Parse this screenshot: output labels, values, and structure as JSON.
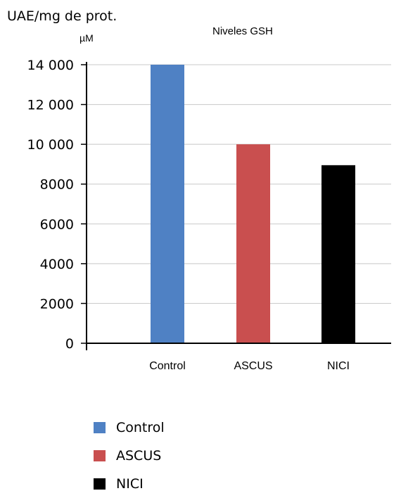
{
  "header": {
    "unit_label": "UAE/mg de prot."
  },
  "chart_data": {
    "type": "bar",
    "title": "Niveles GSH",
    "ylabel": "µM",
    "xlabel": "",
    "categories": [
      "Control",
      "ASCUS",
      "NICI"
    ],
    "values": [
      14000,
      10000,
      8950
    ],
    "colors": [
      "#4f81c4",
      "#c94f4f",
      "#000000"
    ],
    "ylim": [
      0,
      14000
    ],
    "yticks": [
      0,
      2000,
      4000,
      6000,
      8000,
      10000,
      12000,
      14000
    ],
    "ytick_labels": [
      "0",
      "2000",
      "4000",
      "6000",
      "8000",
      "10 000",
      "12 000",
      "14 000"
    ],
    "grid": true,
    "legend_position": "bottom-left"
  },
  "legend": {
    "items": [
      {
        "label": "Control",
        "color": "#4f81c4"
      },
      {
        "label": "ASCUS",
        "color": "#c94f4f"
      },
      {
        "label": "NICI",
        "color": "#000000"
      }
    ]
  }
}
